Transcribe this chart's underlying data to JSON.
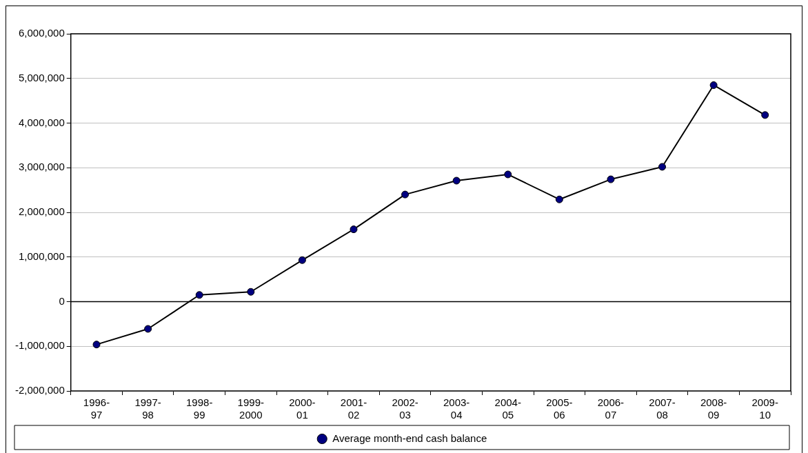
{
  "chart_data": {
    "type": "line",
    "categories": [
      "1996-97",
      "1997-98",
      "1998-99",
      "1999-2000",
      "2000-01",
      "2001-02",
      "2002-03",
      "2003-04",
      "2004-05",
      "2005-06",
      "2006-07",
      "2007-08",
      "2008-09",
      "2009-10"
    ],
    "series": [
      {
        "name": "Average month-end cash balance",
        "color": "#000080",
        "values": [
          -960000,
          -610000,
          150000,
          220000,
          930000,
          1620000,
          2400000,
          2710000,
          2850000,
          2290000,
          2740000,
          3020000,
          4850000,
          4180000
        ]
      }
    ],
    "ylim": [
      -2000000,
      6000000
    ],
    "yticks": [
      {
        "value": -2000000,
        "label": "-2,000,000"
      },
      {
        "value": -1000000,
        "label": "-1,000,000"
      },
      0,
      {
        "value": 1000000,
        "label": "1,000,000"
      },
      {
        "value": 2000000,
        "label": "2,000,000"
      },
      {
        "value": 3000000,
        "label": "3,000,000"
      },
      {
        "value": 4000000,
        "label": "4,000,000"
      },
      {
        "value": 5000000,
        "label": "5,000,000"
      },
      {
        "value": 6000000,
        "label": "6,000,000"
      }
    ],
    "grid": "y",
    "legend": "bottom",
    "marker": "circle",
    "line_style": "solid"
  }
}
